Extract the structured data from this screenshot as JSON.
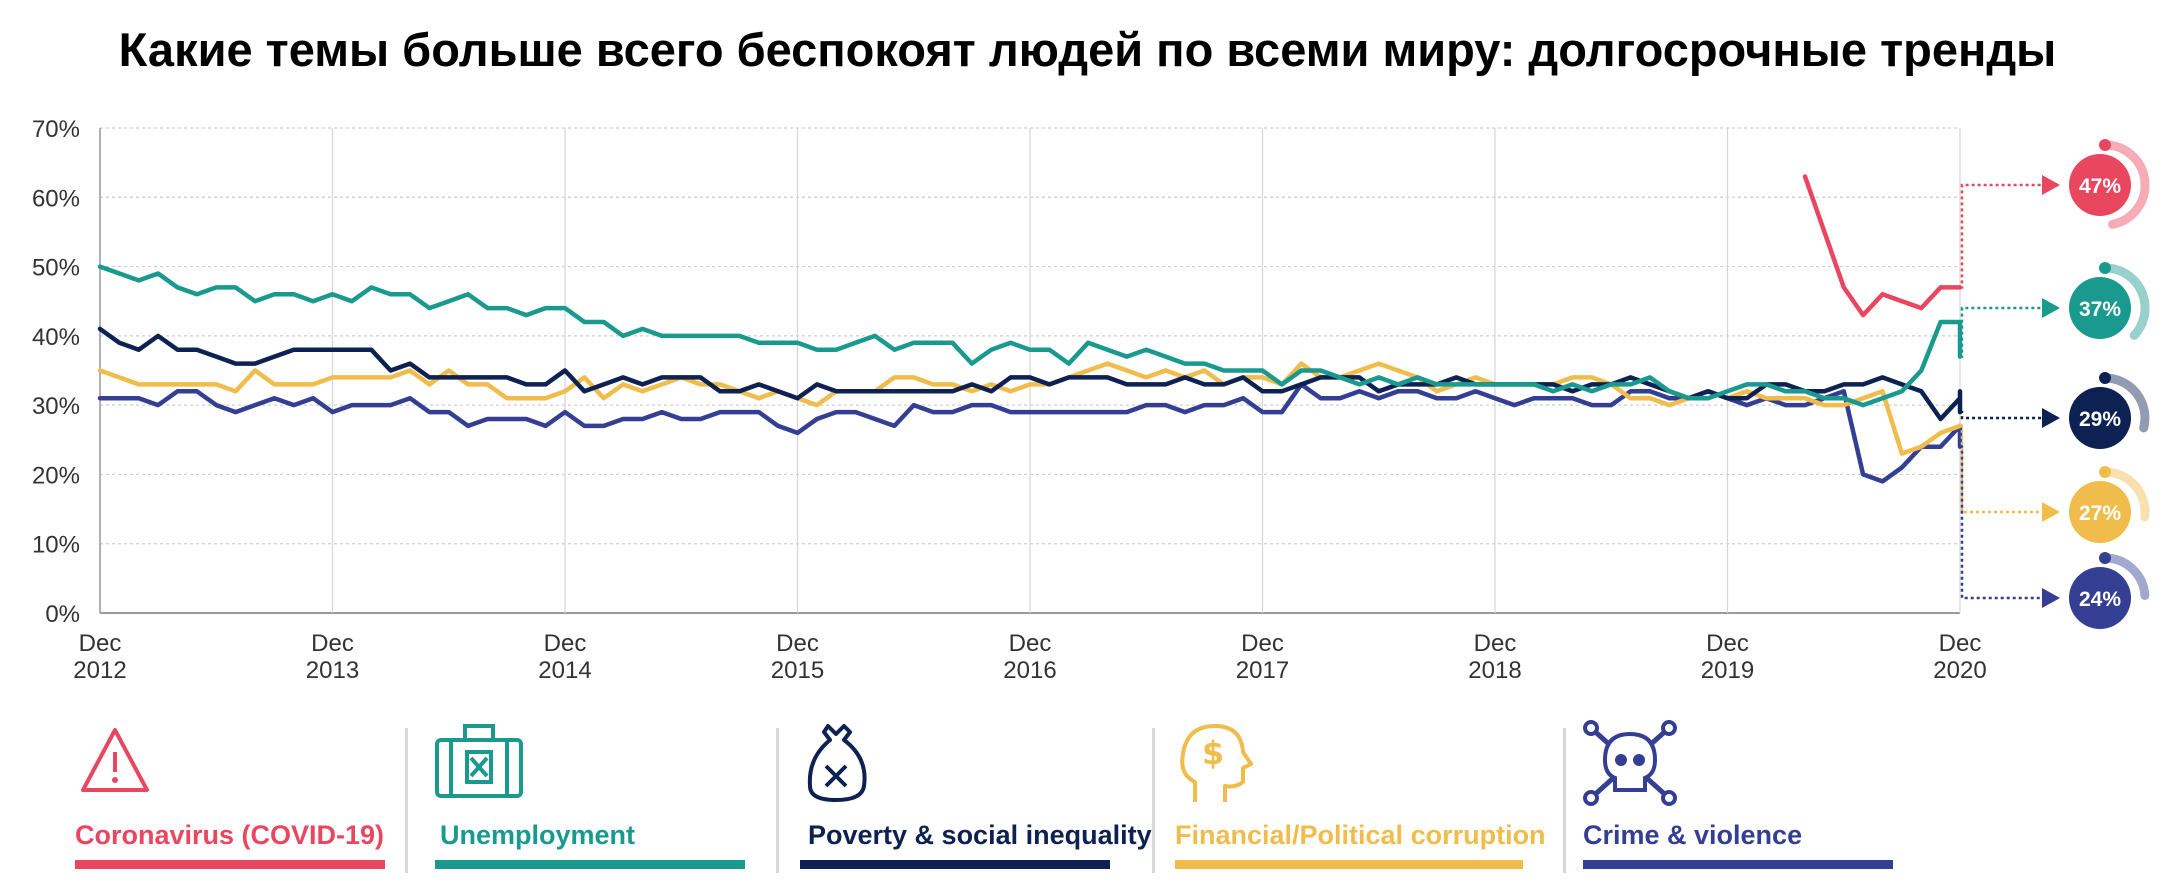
{
  "title": "Какие темы больше всего беспокоят людей по всеми миру: долгосрочные тренды",
  "chart_data": {
    "type": "line",
    "title": "Какие темы больше всего беспокоят людей по всеми миру: долгосрочные тренды",
    "ylim": [
      0,
      70
    ],
    "y_ticks": [
      "0%",
      "10%",
      "20%",
      "30%",
      "40%",
      "50%",
      "60%",
      "70%"
    ],
    "x_ticks": [
      {
        "month": "Dec",
        "year": "2012"
      },
      {
        "month": "Dec",
        "year": "2013"
      },
      {
        "month": "Dec",
        "year": "2014"
      },
      {
        "month": "Dec",
        "year": "2015"
      },
      {
        "month": "Dec",
        "year": "2016"
      },
      {
        "month": "Dec",
        "year": "2017"
      },
      {
        "month": "Dec",
        "year": "2018"
      },
      {
        "month": "Dec",
        "year": "2019"
      },
      {
        "month": "Dec",
        "year": "2020"
      }
    ],
    "x_start": "Dec 2012",
    "x_end": "Dec 2020",
    "grid": true,
    "series": [
      {
        "name": "Coronavirus (COVID-19)",
        "color": "#e8475f",
        "end_label": "47%",
        "start": "Apr 2020",
        "values": [
          63,
          55,
          47,
          43,
          46,
          45,
          44,
          47,
          47
        ]
      },
      {
        "name": "Unemployment",
        "color": "#1a9a8f",
        "end_label": "37%",
        "start": "Dec 2012",
        "values": [
          50,
          49,
          48,
          49,
          47,
          46,
          47,
          47,
          45,
          46,
          46,
          45,
          46,
          45,
          47,
          46,
          46,
          44,
          45,
          46,
          44,
          44,
          43,
          44,
          44,
          42,
          42,
          40,
          41,
          40,
          40,
          40,
          40,
          40,
          39,
          39,
          39,
          38,
          38,
          39,
          40,
          38,
          39,
          39,
          39,
          36,
          38,
          39,
          38,
          38,
          36,
          39,
          38,
          37,
          38,
          37,
          36,
          36,
          35,
          35,
          35,
          33,
          35,
          35,
          34,
          33,
          34,
          33,
          34,
          33,
          33,
          33,
          33,
          33,
          33,
          32,
          33,
          32,
          33,
          33,
          34,
          32,
          31,
          31,
          32,
          33,
          33,
          32,
          32,
          31,
          31,
          30,
          31,
          32,
          35,
          42,
          42,
          40,
          40,
          39,
          38,
          38,
          37
        ]
      },
      {
        "name": "Poverty & social inequality",
        "color": "#0d2152",
        "end_label": "29%",
        "start": "Dec 2012",
        "values": [
          41,
          39,
          38,
          40,
          38,
          38,
          37,
          36,
          36,
          37,
          38,
          38,
          38,
          38,
          38,
          35,
          36,
          34,
          34,
          34,
          34,
          34,
          33,
          33,
          35,
          32,
          33,
          34,
          33,
          34,
          34,
          34,
          32,
          32,
          33,
          32,
          31,
          33,
          32,
          32,
          32,
          32,
          32,
          32,
          32,
          33,
          32,
          34,
          34,
          33,
          34,
          34,
          34,
          33,
          33,
          33,
          34,
          33,
          33,
          34,
          32,
          32,
          33,
          34,
          34,
          34,
          32,
          33,
          33,
          33,
          34,
          33,
          33,
          33,
          33,
          33,
          32,
          33,
          33,
          34,
          33,
          32,
          31,
          32,
          31,
          31,
          33,
          33,
          32,
          32,
          33,
          33,
          34,
          33,
          32,
          28,
          31,
          31,
          32,
          30,
          30,
          30,
          29,
          29
        ]
      },
      {
        "name": "Financial/Political corruption",
        "color": "#f0bd4c",
        "end_label": "27%",
        "start": "Dec 2012",
        "values": [
          35,
          34,
          33,
          33,
          33,
          33,
          33,
          32,
          35,
          33,
          33,
          33,
          34,
          34,
          34,
          34,
          35,
          33,
          35,
          33,
          33,
          31,
          31,
          31,
          32,
          34,
          31,
          33,
          32,
          33,
          34,
          33,
          33,
          32,
          31,
          32,
          31,
          30,
          32,
          32,
          32,
          34,
          34,
          33,
          33,
          32,
          33,
          32,
          33,
          33,
          34,
          35,
          36,
          35,
          34,
          35,
          34,
          35,
          33,
          34,
          34,
          33,
          36,
          34,
          34,
          35,
          36,
          35,
          34,
          32,
          33,
          34,
          33,
          33,
          33,
          33,
          34,
          34,
          33,
          31,
          31,
          30,
          31,
          32,
          31,
          32,
          31,
          31,
          31,
          30,
          30,
          31,
          32,
          23,
          24,
          26,
          27,
          27,
          27,
          27,
          27,
          27,
          27
        ]
      },
      {
        "name": "Crime & violence",
        "color": "#343f94",
        "end_label": "24%",
        "start": "Dec 2012",
        "values": [
          31,
          31,
          31,
          30,
          32,
          32,
          30,
          29,
          30,
          31,
          30,
          31,
          29,
          30,
          30,
          30,
          31,
          29,
          29,
          27,
          28,
          28,
          28,
          27,
          29,
          27,
          27,
          28,
          28,
          29,
          28,
          28,
          29,
          29,
          29,
          27,
          26,
          28,
          29,
          29,
          28,
          27,
          30,
          29,
          29,
          30,
          30,
          29,
          29,
          29,
          29,
          29,
          29,
          29,
          30,
          30,
          29,
          30,
          30,
          31,
          29,
          29,
          33,
          31,
          31,
          32,
          31,
          32,
          32,
          31,
          31,
          32,
          31,
          30,
          31,
          31,
          31,
          30,
          30,
          32,
          32,
          31,
          31,
          32,
          31,
          30,
          31,
          30,
          30,
          31,
          32,
          20,
          19,
          21,
          24,
          24,
          27,
          26,
          26,
          24
        ]
      }
    ]
  },
  "legend": [
    {
      "label": "Coronavirus (COVID-19)",
      "icon": "warning-triangle-icon"
    },
    {
      "label": "Unemployment",
      "icon": "briefcase-icon"
    },
    {
      "label": "Poverty & social inequality",
      "icon": "money-bag-icon"
    },
    {
      "label": "Financial/Political corruption",
      "icon": "head-dollar-icon"
    },
    {
      "label": "Crime & violence",
      "icon": "skull-crossbones-icon"
    }
  ]
}
